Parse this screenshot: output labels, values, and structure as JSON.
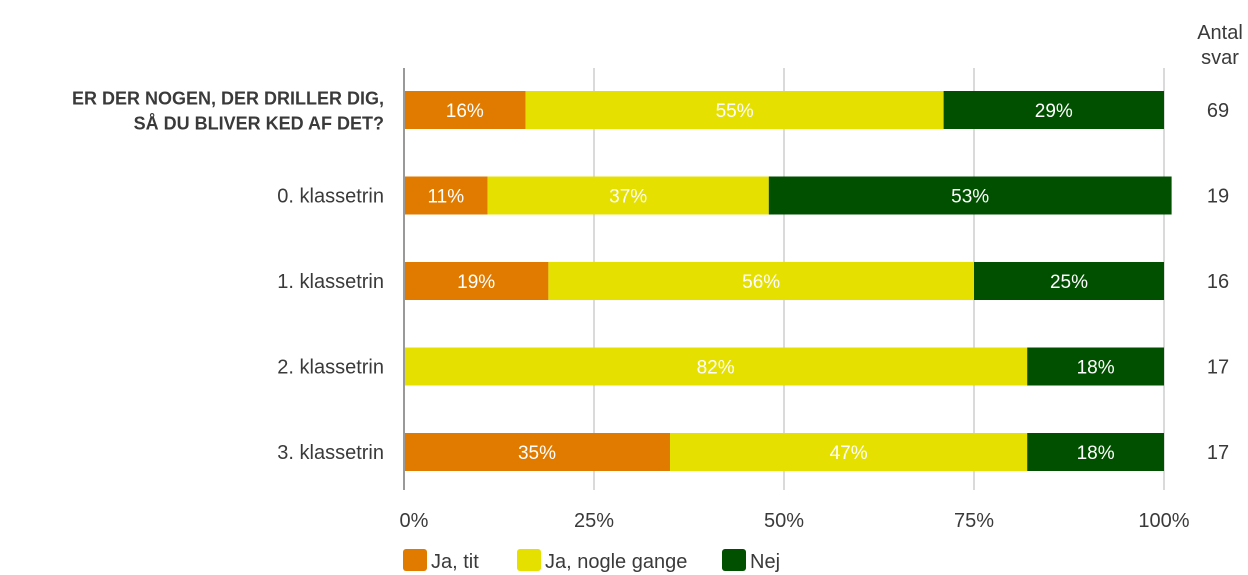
{
  "chart_data": {
    "type": "bar",
    "orientation": "horizontal",
    "stacked": true,
    "categories": [
      [
        "ER DER NOGEN, DER DRILLER DIG,",
        "SÅ DU BLIVER KED AF DET?"
      ],
      [
        "0. klassetrin"
      ],
      [
        "1. klassetrin"
      ],
      [
        "2. klassetrin"
      ],
      [
        "3. klassetrin"
      ]
    ],
    "category_bold": [
      true,
      false,
      false,
      false,
      false
    ],
    "series": [
      {
        "name": "Ja, tit",
        "color": "#e07b00",
        "values": [
          16,
          11,
          19,
          0,
          35
        ],
        "labels": [
          "16%",
          "11%",
          "19%",
          "",
          "35%"
        ]
      },
      {
        "name": "Ja, nogle gange",
        "color": "#e5e000",
        "values": [
          55,
          37,
          56,
          82,
          47
        ],
        "labels": [
          "55%",
          "37%",
          "56%",
          "82%",
          "47%"
        ]
      },
      {
        "name": "Nej",
        "color": "#005000",
        "values": [
          29,
          53,
          25,
          18,
          18
        ],
        "labels": [
          "29%",
          "53%",
          "25%",
          "18%",
          "18%"
        ]
      }
    ],
    "counts_header": [
      "Antal",
      "svar"
    ],
    "counts": [
      "69",
      "19",
      "16",
      "17",
      "17"
    ],
    "xlim": [
      0,
      100
    ],
    "xticks": [
      0,
      25,
      50,
      75,
      100
    ],
    "xtick_labels": [
      "0%",
      "25%",
      "50%",
      "75%",
      "100%"
    ],
    "grid": true,
    "legend_position": "bottom"
  }
}
